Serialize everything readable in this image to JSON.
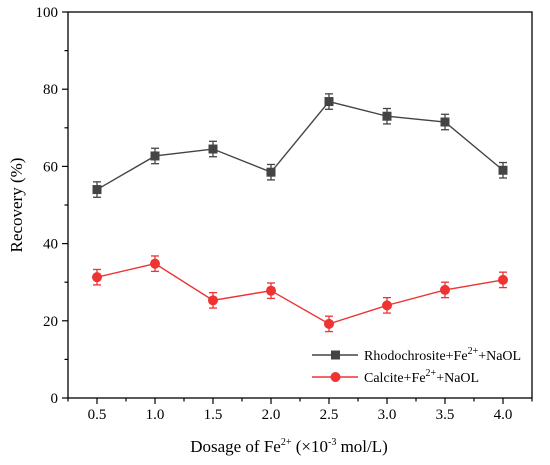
{
  "chart_data": {
    "type": "line",
    "xlabel": {
      "prefix": "Dosage of Fe",
      "sup": "2+",
      "suffix": " (×10",
      "sup2": "-3",
      "suffix2": " mol/L)"
    },
    "ylabel": "Recovery (%)",
    "x": [
      0.5,
      1.0,
      1.5,
      2.0,
      2.5,
      3.0,
      3.5,
      4.0
    ],
    "xticks": [
      "0.5",
      "1.0",
      "1.5",
      "2.0",
      "2.5",
      "3.0",
      "3.5",
      "4.0"
    ],
    "xlim": [
      0.25,
      4.25
    ],
    "ylim": [
      0,
      100
    ],
    "yticks": [
      0,
      20,
      40,
      60,
      80,
      100
    ],
    "legend_position": "bottom-right",
    "grid": false,
    "series": [
      {
        "name_parts": {
          "a": "Rhodochrosite+Fe",
          "sup": "2+",
          "b": "+NaOL"
        },
        "marker": "square",
        "color": "#444444",
        "values": [
          54.0,
          62.7,
          64.5,
          58.5,
          76.8,
          73.0,
          71.5,
          59.0
        ],
        "errors": [
          2.0,
          2.0,
          2.0,
          2.0,
          2.0,
          2.0,
          2.0,
          2.0
        ]
      },
      {
        "name_parts": {
          "a": "Calcite+Fe",
          "sup": "2+",
          "b": "+NaOL"
        },
        "marker": "circle",
        "color": "#ee3333",
        "values": [
          31.3,
          34.8,
          25.3,
          27.8,
          19.2,
          24.0,
          28.0,
          30.6
        ],
        "errors": [
          2.0,
          2.0,
          2.0,
          2.0,
          2.0,
          2.0,
          2.0,
          2.0
        ]
      }
    ]
  }
}
